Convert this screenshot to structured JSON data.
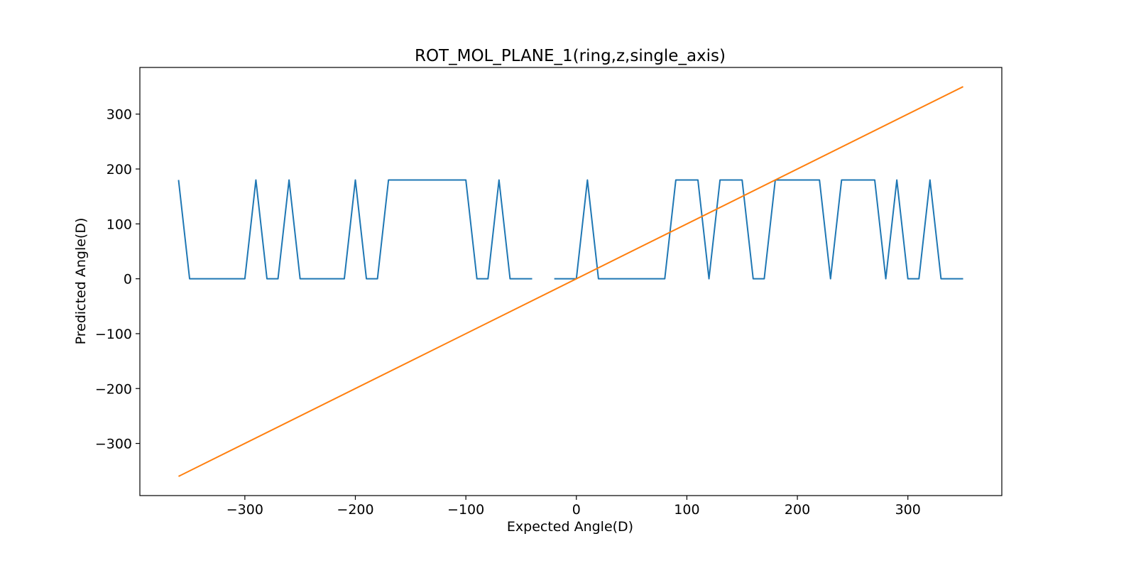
{
  "chart_data": {
    "type": "line",
    "title": "ROT_MOL_PLANE_1(ring,z,single_axis)",
    "xlabel": "Expected Angle(D)",
    "ylabel": "Predicted Angle(D)",
    "xlim": [
      -395,
      385
    ],
    "ylim": [
      -395,
      385
    ],
    "xticks": [
      -300,
      -200,
      -100,
      0,
      100,
      200,
      300
    ],
    "yticks": [
      -300,
      -200,
      -100,
      0,
      100,
      200,
      300
    ],
    "grid": false,
    "series": [
      {
        "color": "#1f77b4",
        "segments": [
          [
            [
              -360,
              180
            ],
            [
              -350,
              0
            ],
            [
              -340,
              0
            ],
            [
              -330,
              0
            ],
            [
              -320,
              0
            ],
            [
              -310,
              0
            ],
            [
              -300,
              0
            ],
            [
              -290,
              180
            ],
            [
              -280,
              0
            ],
            [
              -270,
              0
            ],
            [
              -260,
              180
            ],
            [
              -250,
              0
            ],
            [
              -240,
              0
            ],
            [
              -230,
              0
            ],
            [
              -220,
              0
            ],
            [
              -210,
              0
            ],
            [
              -200,
              180
            ],
            [
              -190,
              0
            ],
            [
              -180,
              0
            ],
            [
              -170,
              180
            ],
            [
              -160,
              180
            ],
            [
              -150,
              180
            ],
            [
              -140,
              180
            ],
            [
              -130,
              180
            ],
            [
              -120,
              180
            ],
            [
              -110,
              180
            ],
            [
              -100,
              180
            ],
            [
              -90,
              0
            ],
            [
              -80,
              0
            ],
            [
              -70,
              180
            ],
            [
              -60,
              0
            ],
            [
              -50,
              0
            ],
            [
              -40,
              0
            ]
          ],
          [
            [
              -20,
              0
            ],
            [
              -10,
              0
            ],
            [
              0,
              0
            ],
            [
              10,
              180
            ],
            [
              20,
              0
            ],
            [
              30,
              0
            ],
            [
              40,
              0
            ],
            [
              50,
              0
            ],
            [
              60,
              0
            ],
            [
              70,
              0
            ],
            [
              80,
              0
            ],
            [
              90,
              180
            ],
            [
              100,
              180
            ],
            [
              110,
              180
            ],
            [
              120,
              0
            ],
            [
              130,
              180
            ],
            [
              140,
              180
            ],
            [
              150,
              180
            ],
            [
              160,
              0
            ],
            [
              170,
              0
            ],
            [
              180,
              180
            ],
            [
              190,
              180
            ],
            [
              200,
              180
            ],
            [
              210,
              180
            ],
            [
              220,
              180
            ],
            [
              230,
              0
            ],
            [
              240,
              180
            ],
            [
              250,
              180
            ],
            [
              260,
              180
            ],
            [
              270,
              180
            ],
            [
              280,
              0
            ],
            [
              290,
              180
            ],
            [
              300,
              0
            ],
            [
              310,
              0
            ],
            [
              320,
              180
            ],
            [
              330,
              0
            ],
            [
              340,
              0
            ],
            [
              350,
              0
            ]
          ]
        ]
      },
      {
        "color": "#ff7f0e",
        "segments": [
          [
            [
              -360,
              -360
            ],
            [
              350,
              350
            ]
          ]
        ]
      }
    ]
  }
}
